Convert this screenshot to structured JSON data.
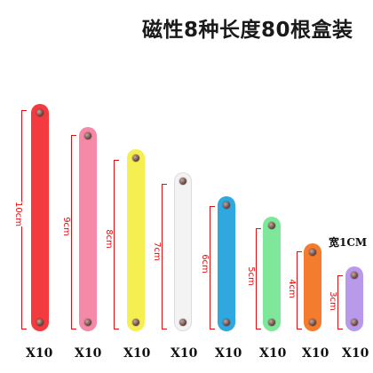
{
  "title": "磁性8种长度80根盒装",
  "width_note": "宽1CM",
  "sticks": [
    {
      "length_label": "10cm",
      "quantity": "X10",
      "color": "#f23a3f"
    },
    {
      "length_label": "9cm",
      "quantity": "X10",
      "color": "#f48aa8"
    },
    {
      "length_label": "8cm",
      "quantity": "X10",
      "color": "#f6ef52"
    },
    {
      "length_label": "7cm",
      "quantity": "X10",
      "color": "#f3f3f3"
    },
    {
      "length_label": "6cm",
      "quantity": "X10",
      "color": "#2fa8e0"
    },
    {
      "length_label": "5cm",
      "quantity": "X10",
      "color": "#7ee79a"
    },
    {
      "length_label": "4cm",
      "quantity": "X10",
      "color": "#f47c2f"
    },
    {
      "length_label": "3cm",
      "quantity": "X10",
      "color": "#b99aea"
    }
  ]
}
